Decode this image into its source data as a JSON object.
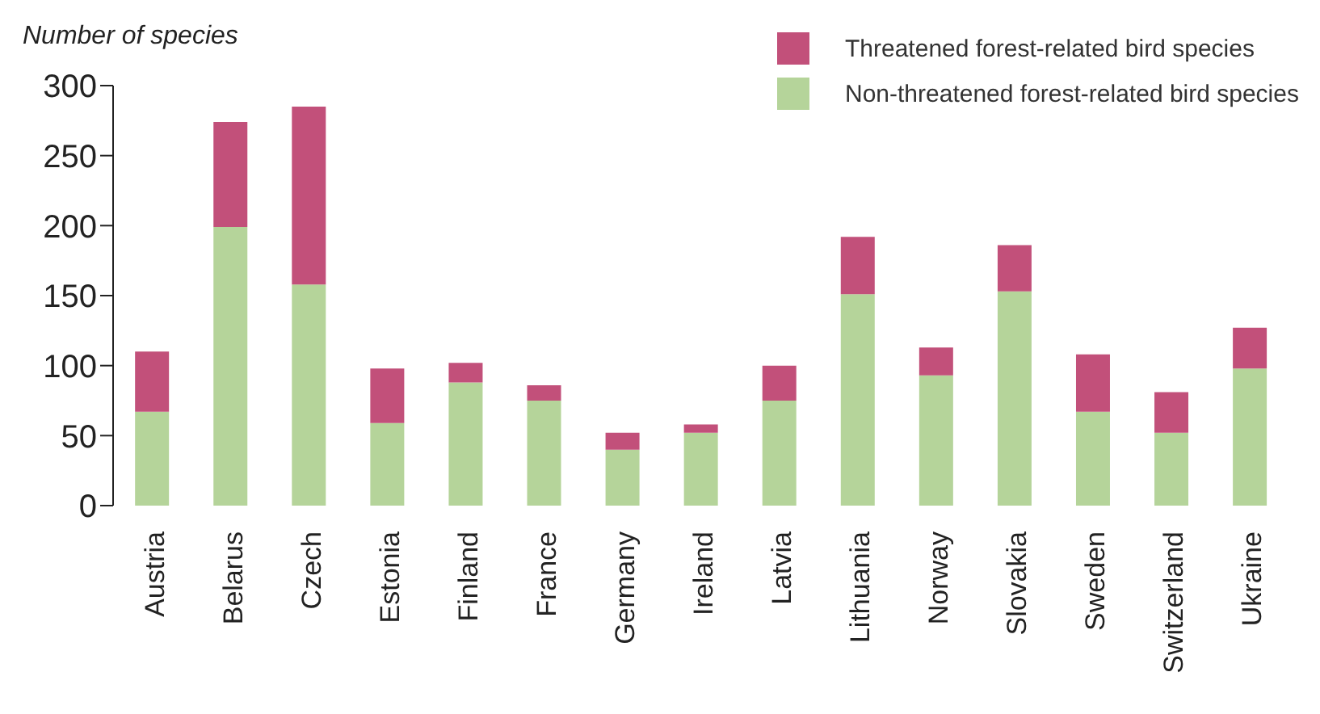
{
  "chart_data": {
    "type": "bar",
    "ylabel": "Number of species",
    "stacked": true,
    "categories": [
      "Austria",
      "Belarus",
      "Czech",
      "Estonia",
      "Finland",
      "France",
      "Germany",
      "Ireland",
      "Latvia",
      "Lithuania",
      "Norway",
      "Slovakia",
      "Sweden",
      "Switzerland",
      "Ukraine"
    ],
    "series": [
      {
        "name": "Non-threatened forest-related bird species",
        "color": "#b5d49a",
        "values": [
          67,
          199,
          158,
          59,
          88,
          75,
          40,
          52,
          75,
          151,
          93,
          153,
          67,
          52,
          98
        ]
      },
      {
        "name": "Threatened forest-related bird species",
        "color": "#c2507a",
        "values": [
          43,
          75,
          127,
          39,
          14,
          11,
          12,
          6,
          25,
          41,
          20,
          33,
          41,
          29,
          29
        ]
      }
    ],
    "ylim": [
      0,
      300
    ],
    "yticks": [
      0,
      50,
      100,
      150,
      200,
      250,
      300
    ],
    "grid": false,
    "legend": "top right"
  }
}
